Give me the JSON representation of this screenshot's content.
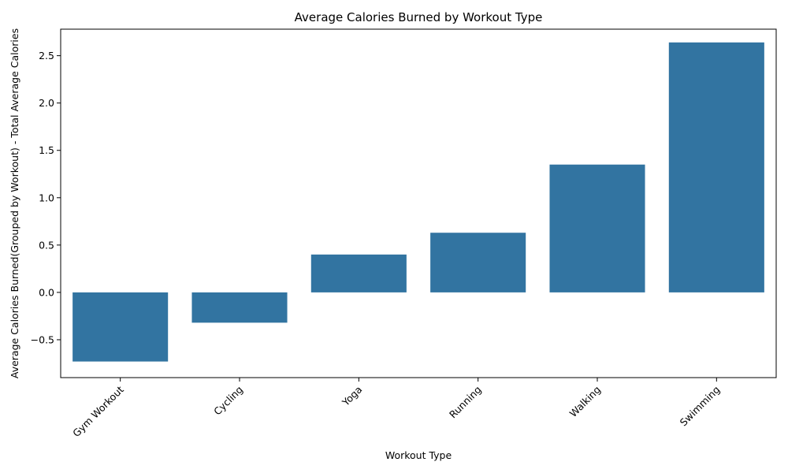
{
  "chart_data": {
    "type": "bar",
    "title": "Average Calories Burned by Workout Type",
    "xlabel": "Workout Type",
    "ylabel": "Average Calories Burned(Grouped by Workout) - Total Average Calories",
    "categories": [
      "Gym Workout",
      "Cycling",
      "Yoga",
      "Running",
      "Walking",
      "Swimming"
    ],
    "values": [
      -0.73,
      -0.32,
      0.4,
      0.63,
      1.35,
      2.64
    ],
    "ylim": [
      -0.9,
      2.78
    ],
    "yticks": [
      -0.5,
      0.0,
      0.5,
      1.0,
      1.5,
      2.0,
      2.5
    ],
    "ytick_labels": [
      "−0.5",
      "0.0",
      "0.5",
      "1.0",
      "1.5",
      "2.0",
      "2.5"
    ],
    "bar_color": "#3274a1",
    "grid": false,
    "legend": "none"
  }
}
